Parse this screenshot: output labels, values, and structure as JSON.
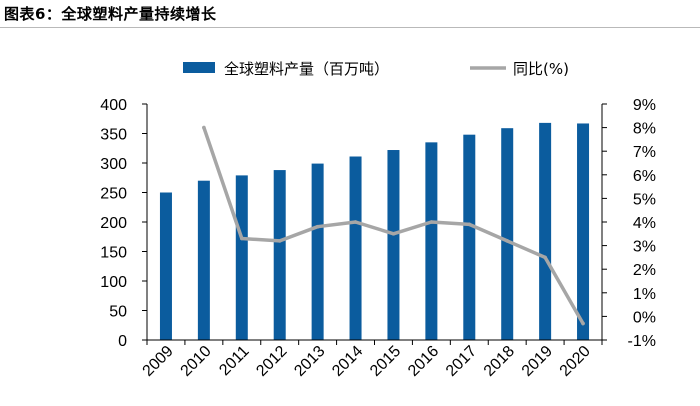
{
  "figure": {
    "title": "图表6：全球塑料产量持续增长"
  },
  "colors": {
    "bar": "#0B5C9E",
    "line": "#A6A6A6",
    "axis": "#000000"
  },
  "chart_data": {
    "type": "bar",
    "title": "",
    "categories": [
      "2009",
      "2010",
      "2011",
      "2012",
      "2013",
      "2014",
      "2015",
      "2016",
      "2017",
      "2018",
      "2019",
      "2020"
    ],
    "series": [
      {
        "name": "全球塑料产量（百万吨）",
        "type": "bar",
        "axis": "left",
        "values": [
          250,
          270,
          279,
          288,
          299,
          311,
          322,
          335,
          348,
          359,
          368,
          367
        ]
      },
      {
        "name": "同比(%)",
        "type": "line",
        "axis": "right",
        "values": [
          null,
          8.0,
          3.3,
          3.2,
          3.8,
          4.0,
          3.5,
          4.0,
          3.9,
          3.2,
          2.5,
          -0.3
        ]
      }
    ],
    "y_left": {
      "ylim": [
        0,
        400
      ],
      "ticks": [
        "0",
        "50",
        "100",
        "150",
        "200",
        "250",
        "300",
        "350",
        "400"
      ]
    },
    "y_right": {
      "ylim": [
        -1,
        9
      ],
      "ticks": [
        "-1%",
        "0%",
        "1%",
        "2%",
        "3%",
        "4%",
        "5%",
        "6%",
        "7%",
        "8%",
        "9%"
      ]
    },
    "legend": "top",
    "grid": false
  }
}
